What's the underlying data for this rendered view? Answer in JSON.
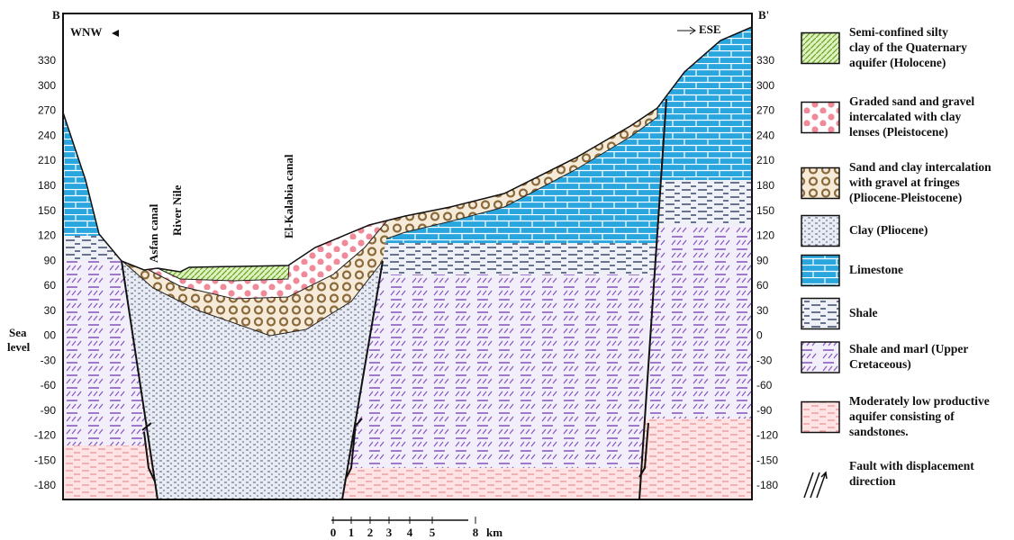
{
  "section": {
    "left_end": "B",
    "right_end": "B'",
    "left_direction": "WNW",
    "right_direction": "ESE",
    "sea_level": [
      "Sea",
      "level"
    ],
    "left_axis": [
      330,
      300,
      270,
      240,
      210,
      180,
      150,
      120,
      90,
      60,
      30,
      "00",
      -30,
      -60,
      -90,
      -120,
      -150,
      -180
    ],
    "right_axis": [
      330,
      300,
      270,
      240,
      210,
      180,
      150,
      120,
      90,
      60,
      30,
      0,
      -30,
      -60,
      -90,
      -120,
      -150,
      -180
    ],
    "places": [
      "Asfan canal",
      "River Nile",
      "El-Kalabia canal"
    ]
  },
  "legend": [
    {
      "lines": [
        "Semi-confined silty",
        "clay of the Quaternary",
        "aquifer (Holocene)"
      ]
    },
    {
      "lines": [
        "Graded sand and gravel",
        "intercalated with clay",
        "lenses (Pleistocene)"
      ]
    },
    {
      "lines": [
        "Sand and clay intercalation",
        "with gravel at fringes",
        "(Pliocene-Pleistocene)"
      ]
    },
    {
      "lines": [
        "Clay (Pliocene)"
      ]
    },
    {
      "lines": [
        "Limestone"
      ]
    },
    {
      "lines": [
        "Shale"
      ]
    },
    {
      "lines": [
        "Shale and marl (Upper",
        "Cretaceous)"
      ]
    },
    {
      "lines": [
        "Moderately low productive",
        "aquifer consisting of",
        "sandstones."
      ]
    },
    {
      "lines": [
        "Fault with displacement",
        "direction"
      ]
    }
  ],
  "scale": {
    "ticks": [
      "0",
      "1",
      "2",
      "3",
      "4",
      "5",
      "8"
    ],
    "unit": "km"
  }
}
